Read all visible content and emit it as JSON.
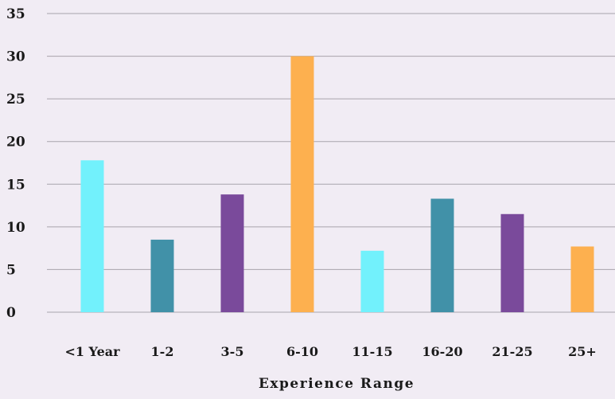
{
  "chart_data": {
    "type": "bar",
    "categories": [
      "<1 Year",
      "1-2",
      "3-5",
      "6-10",
      "11-15",
      "16-20",
      "21-25",
      "25+"
    ],
    "values": [
      17.8,
      8.5,
      13.8,
      30.0,
      7.2,
      13.3,
      11.5,
      7.7
    ],
    "colors": [
      "#72f1fc",
      "#4191a8",
      "#7a4a9b",
      "#fdb04f",
      "#72f1fc",
      "#4191a8",
      "#7a4a9b",
      "#fdb04f"
    ],
    "xlabel": "Experience Range",
    "ylabel": "",
    "ylim": [
      0,
      35
    ],
    "yticks": [
      0,
      5,
      10,
      15,
      20,
      25,
      30,
      35
    ],
    "grid": true,
    "legend": "none"
  }
}
